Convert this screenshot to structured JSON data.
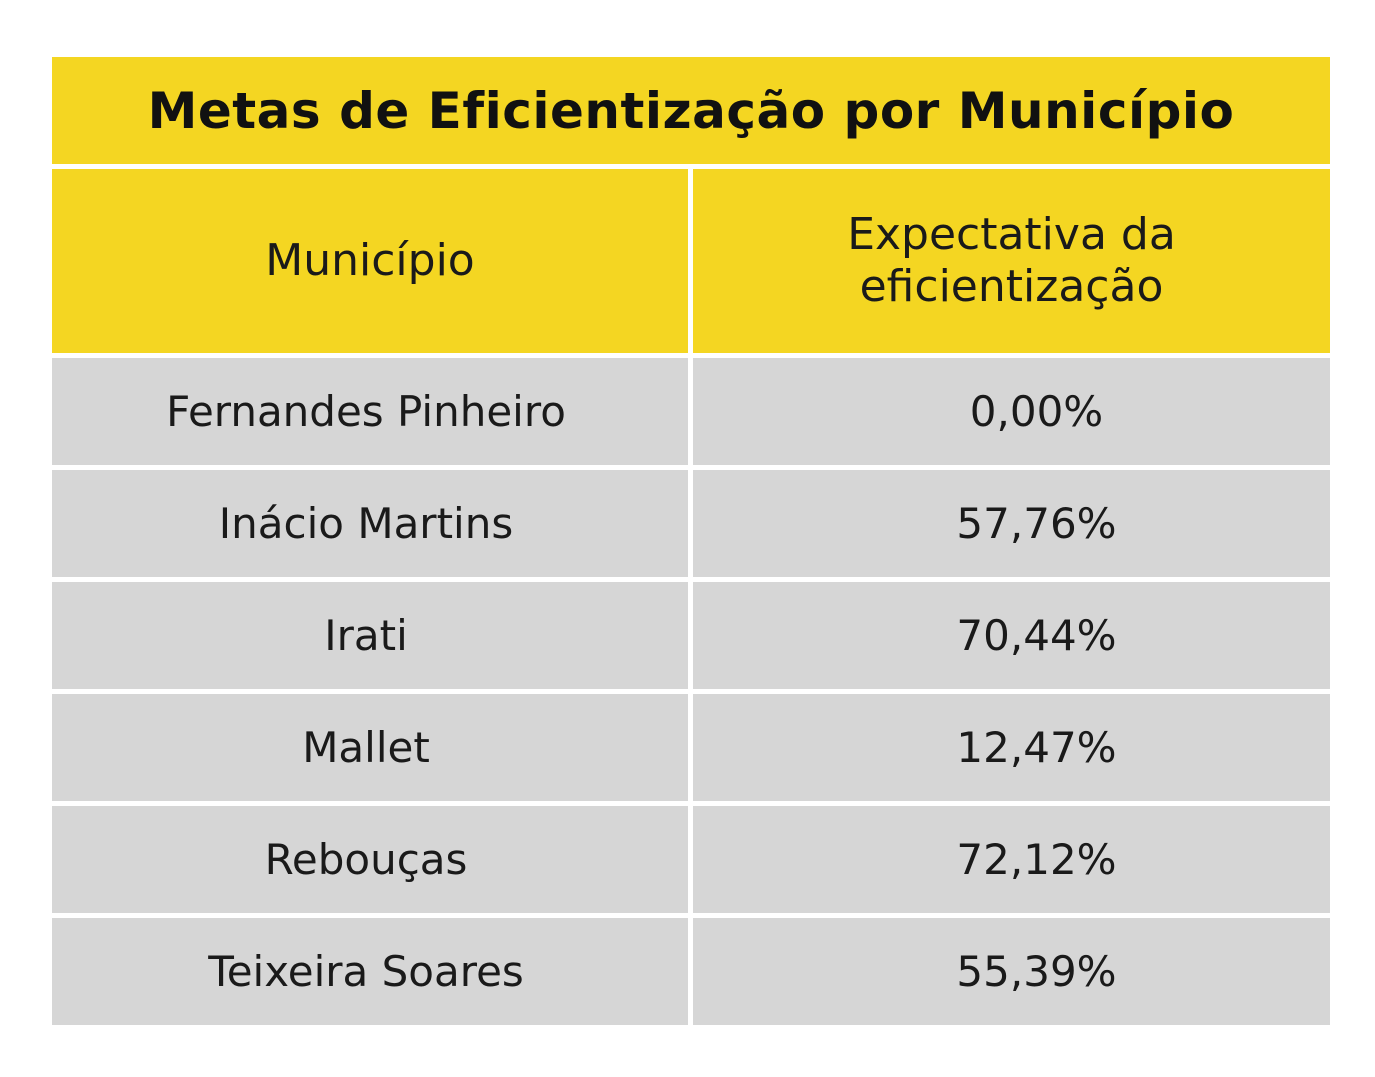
{
  "title": "Metas de Eficientização por Município",
  "headers": {
    "municipality": "Município",
    "expectation_line1": "Expectativa da",
    "expectation_line2": "eficientização"
  },
  "rows": [
    {
      "municipality": "Fernandes Pinheiro",
      "value": "0,00%"
    },
    {
      "municipality": "Inácio Martins",
      "value": "57,76%"
    },
    {
      "municipality": "Irati",
      "value": "70,44%"
    },
    {
      "municipality": "Mallet",
      "value": "12,47%"
    },
    {
      "municipality": "Rebouças",
      "value": "72,12%"
    },
    {
      "municipality": "Teixeira Soares",
      "value": "55,39%"
    }
  ],
  "colors": {
    "header_bg": "#f4d622",
    "row_bg": "#d6d6d6",
    "divider": "#ffffff",
    "text": "#1a1a1a"
  }
}
